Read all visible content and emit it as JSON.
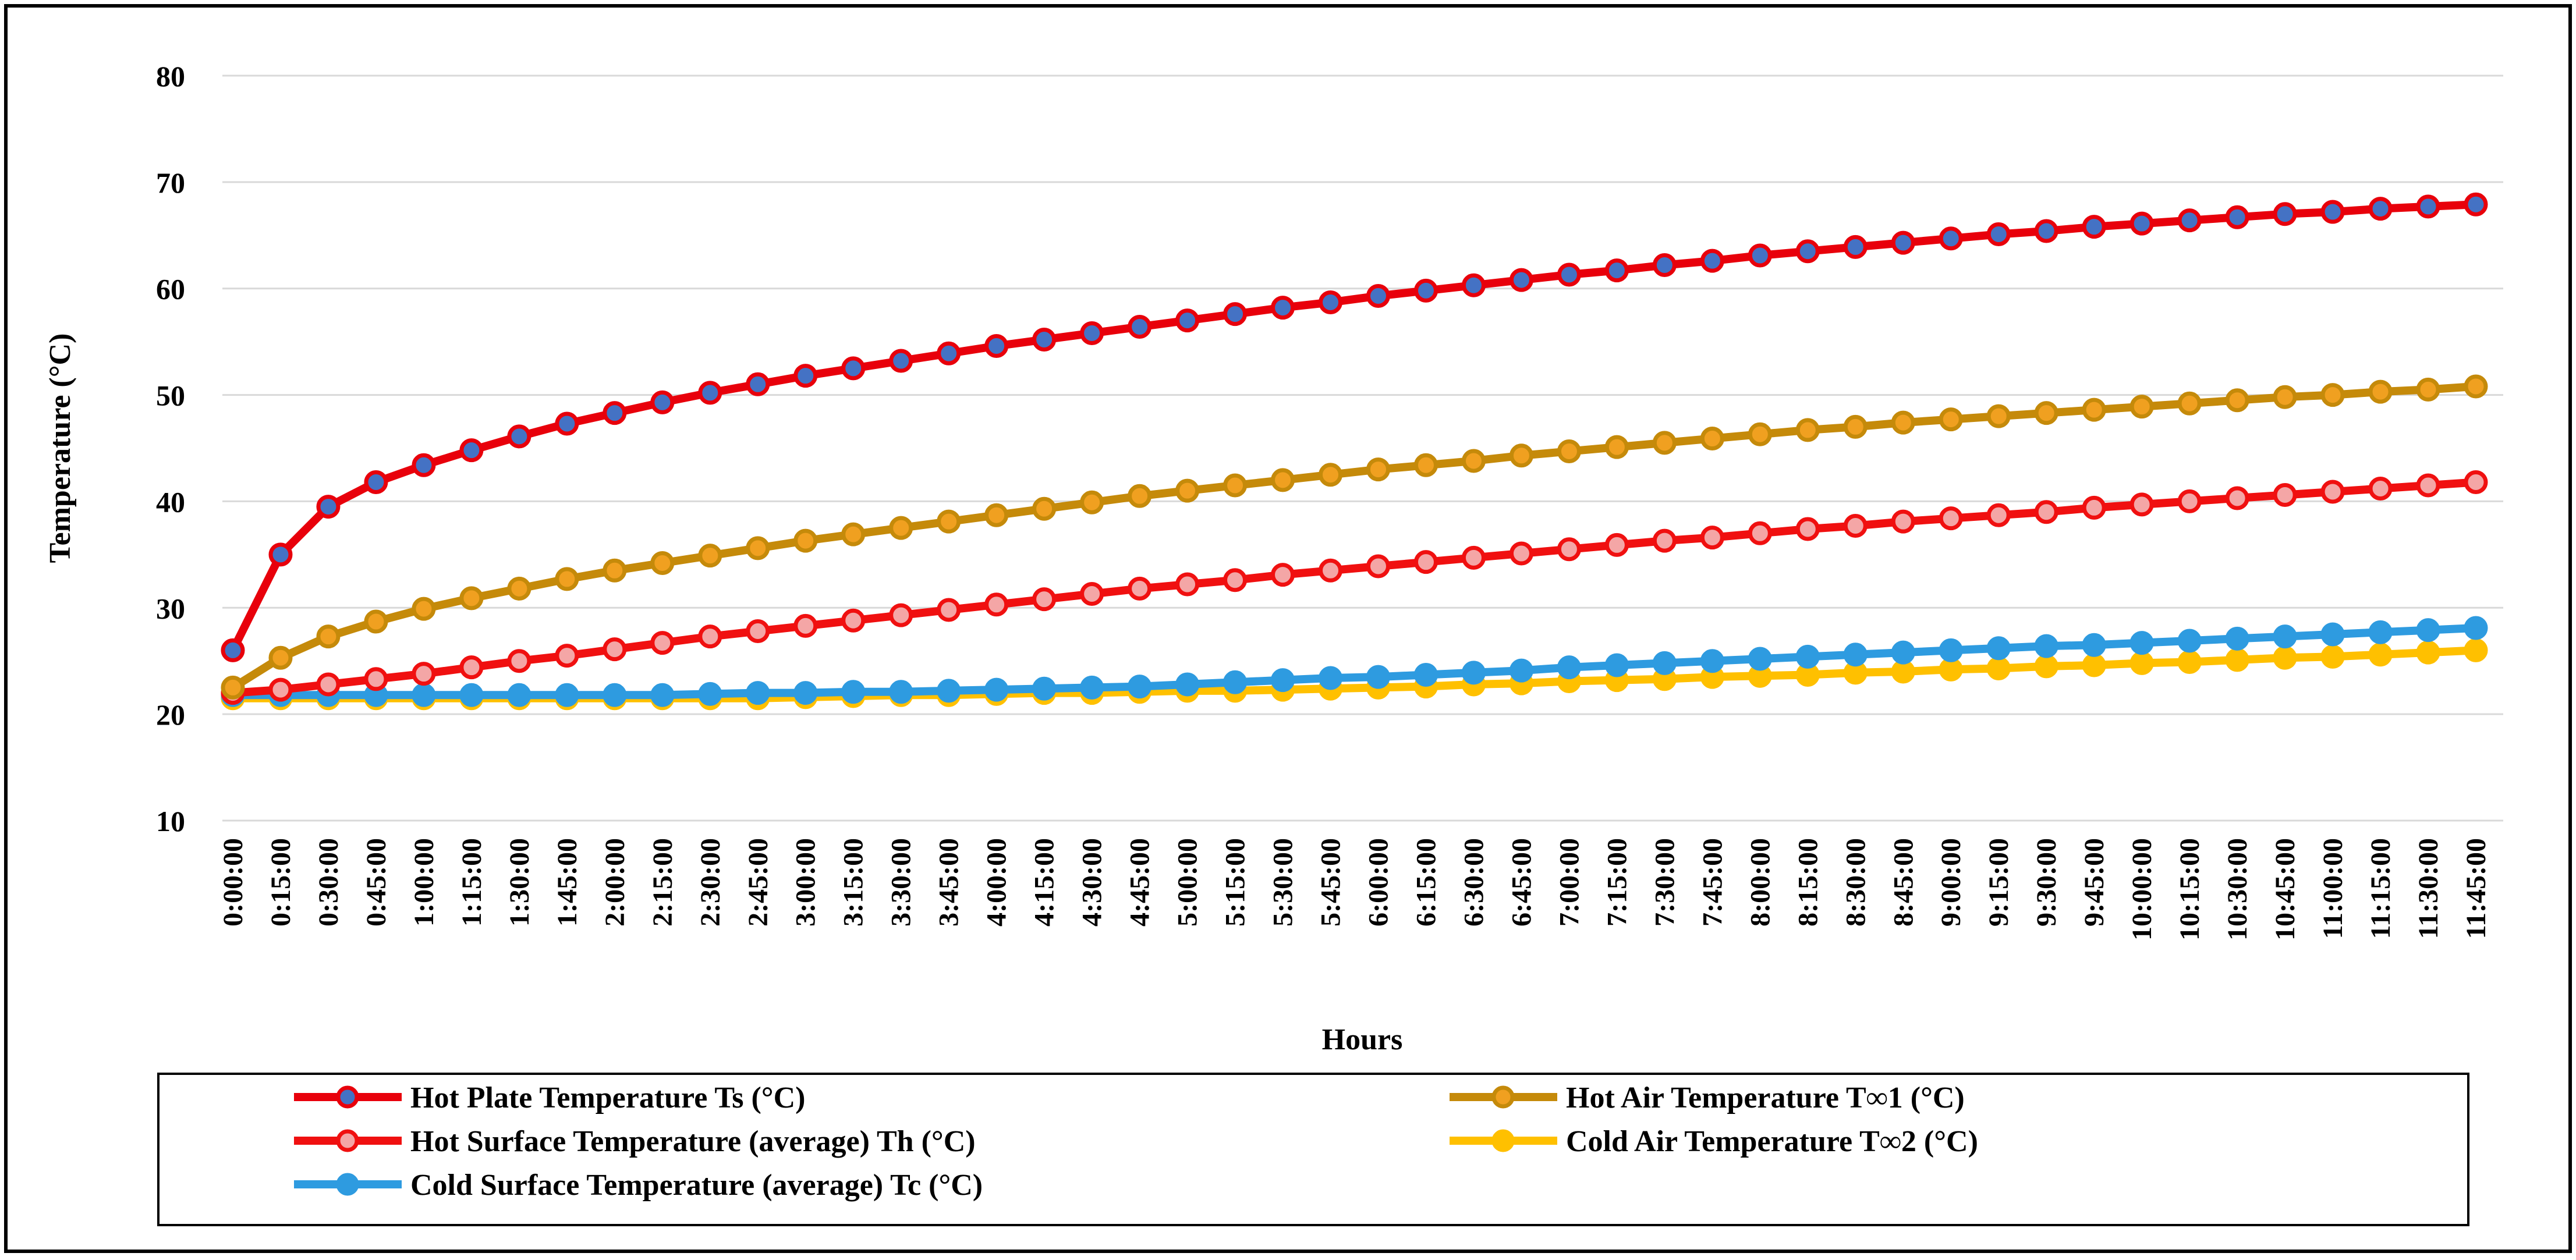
{
  "chart_data": {
    "type": "line",
    "title": "",
    "xlabel": "Hours",
    "ylabel": "Temperature (°C)",
    "ylim": [
      10,
      80
    ],
    "yticks": [
      10,
      20,
      30,
      40,
      50,
      60,
      70,
      80
    ],
    "grid": true,
    "legend_position": "bottom",
    "categories": [
      "0:00:00",
      "0:15:00",
      "0:30:00",
      "0:45:00",
      "1:00:00",
      "1:15:00",
      "1:30:00",
      "1:45:00",
      "2:00:00",
      "2:15:00",
      "2:30:00",
      "2:45:00",
      "3:00:00",
      "3:15:00",
      "3:30:00",
      "3:45:00",
      "4:00:00",
      "4:15:00",
      "4:30:00",
      "4:45:00",
      "5:00:00",
      "5:15:00",
      "5:30:00",
      "5:45:00",
      "6:00:00",
      "6:15:00",
      "6:30:00",
      "6:45:00",
      "7:00:00",
      "7:15:00",
      "7:30:00",
      "7:45:00",
      "8:00:00",
      "8:15:00",
      "8:30:00",
      "8:45:00",
      "9:00:00",
      "9:15:00",
      "9:30:00",
      "9:45:00",
      "10:00:00",
      "10:15:00",
      "10:30:00",
      "10:45:00",
      "11:00:00",
      "11:15:00",
      "11:30:00",
      "11:45:00"
    ],
    "series": [
      {
        "name": "Hot Plate Temperature Ts (°C)",
        "color": "#E8000B",
        "marker_color": "#4472C4",
        "values": [
          26,
          35,
          39.5,
          41.8,
          43.4,
          44.8,
          46.1,
          47.3,
          48.3,
          49.3,
          50.2,
          51,
          51.8,
          52.5,
          53.2,
          53.9,
          54.6,
          55.2,
          55.8,
          56.4,
          57,
          57.6,
          58.2,
          58.7,
          59.3,
          59.8,
          60.3,
          60.8,
          61.3,
          61.7,
          62.2,
          62.6,
          63.1,
          63.5,
          63.9,
          64.3,
          64.7,
          65.1,
          65.4,
          65.8,
          66.1,
          66.4,
          66.7,
          67,
          67.2,
          67.5,
          67.7,
          67.9
        ]
      },
      {
        "name": "Hot Air Temperature T∞1 (°C)",
        "color": "#C58A0A",
        "marker_color": "#F0A020",
        "values": [
          22.5,
          25.3,
          27.3,
          28.7,
          29.9,
          30.9,
          31.8,
          32.7,
          33.5,
          34.2,
          34.9,
          35.6,
          36.3,
          36.9,
          37.5,
          38.1,
          38.7,
          39.3,
          39.9,
          40.5,
          41,
          41.5,
          42,
          42.5,
          43,
          43.4,
          43.8,
          44.3,
          44.7,
          45.1,
          45.5,
          45.9,
          46.3,
          46.7,
          47,
          47.4,
          47.7,
          48,
          48.3,
          48.6,
          48.9,
          49.2,
          49.5,
          49.8,
          50,
          50.3,
          50.5,
          50.8
        ]
      },
      {
        "name": "Hot Surface Temperature (average) Th (°C)",
        "color": "#F01010",
        "marker_color": "#F4A6A6",
        "values": [
          22,
          22.3,
          22.8,
          23.3,
          23.8,
          24.4,
          25,
          25.5,
          26.1,
          26.7,
          27.3,
          27.8,
          28.3,
          28.8,
          29.3,
          29.8,
          30.3,
          30.8,
          31.3,
          31.8,
          32.2,
          32.6,
          33.1,
          33.5,
          33.9,
          34.3,
          34.7,
          35.1,
          35.5,
          35.9,
          36.3,
          36.6,
          37,
          37.4,
          37.7,
          38.1,
          38.4,
          38.7,
          39,
          39.4,
          39.7,
          40,
          40.3,
          40.6,
          40.9,
          41.2,
          41.5,
          41.8
        ]
      },
      {
        "name": "Cold Air Temperature T∞2 (°C)",
        "color": "#FFC000",
        "marker_color": "#FFC000",
        "values": [
          21.5,
          21.5,
          21.5,
          21.5,
          21.5,
          21.5,
          21.5,
          21.5,
          21.5,
          21.5,
          21.5,
          21.5,
          21.6,
          21.7,
          21.8,
          21.8,
          21.9,
          22,
          22,
          22.1,
          22.2,
          22.2,
          22.3,
          22.4,
          22.5,
          22.6,
          22.8,
          22.9,
          23.1,
          23.2,
          23.3,
          23.5,
          23.6,
          23.7,
          23.9,
          24,
          24.2,
          24.3,
          24.5,
          24.6,
          24.8,
          24.9,
          25.1,
          25.3,
          25.4,
          25.6,
          25.8,
          26
        ]
      },
      {
        "name": "Cold Surface Temperature (average) Tc (°C)",
        "color": "#2E9BE0",
        "marker_color": "#2E9BE0",
        "values": [
          21.8,
          21.8,
          21.8,
          21.8,
          21.8,
          21.8,
          21.8,
          21.8,
          21.8,
          21.8,
          21.9,
          22,
          22,
          22.1,
          22.1,
          22.2,
          22.3,
          22.4,
          22.5,
          22.6,
          22.8,
          23,
          23.2,
          23.4,
          23.5,
          23.7,
          23.9,
          24.1,
          24.4,
          24.6,
          24.8,
          25,
          25.2,
          25.4,
          25.6,
          25.8,
          26,
          26.2,
          26.4,
          26.5,
          26.7,
          26.9,
          27.1,
          27.3,
          27.5,
          27.7,
          27.9,
          28.1
        ]
      }
    ]
  }
}
